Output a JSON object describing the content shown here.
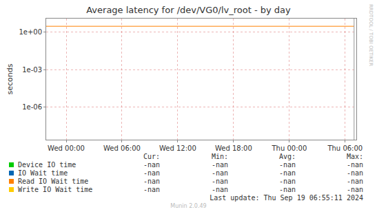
{
  "chart_data": {
    "type": "line",
    "title": "Average latency for /dev/VG0/lv_root - by day",
    "y_label": "seconds",
    "log": "y",
    "grid": true,
    "x": [
      -2.15,
      30.96
    ],
    "xlim": [
      -2.15,
      31.2
    ],
    "xticks": [
      {
        "value": 0,
        "label": "Wed 00:00"
      },
      {
        "value": 6,
        "label": "Wed 06:00"
      },
      {
        "value": 12,
        "label": "Wed 12:00"
      },
      {
        "value": 18,
        "label": "Wed 18:00"
      },
      {
        "value": 24,
        "label": "Thu 00:00"
      },
      {
        "value": 30,
        "label": "Thu 06:00"
      }
    ],
    "ylim": [
      2.7e-09,
      11
    ],
    "yticks": [
      {
        "value": 1e-06,
        "label": "1e-06"
      },
      {
        "value": 0.001,
        "label": "1e-03"
      },
      {
        "value": 1,
        "label": "1e+00"
      }
    ],
    "series": [
      {
        "name": "Device IO time",
        "color": "#00cc00",
        "values": [
          null,
          null
        ]
      },
      {
        "name": "IO Wait time",
        "color": "#0066b3",
        "values": [
          null,
          null
        ]
      },
      {
        "name": "Read IO Wait time",
        "color": "#ff8000",
        "values": [
          2.7,
          2.7
        ]
      },
      {
        "name": "Write IO Wait time",
        "color": "#ffcc00",
        "values": [
          null,
          null
        ]
      }
    ],
    "summary": {
      "columns": [
        "Cur:",
        "Min:",
        "Avg:",
        "Max:"
      ],
      "rows": [
        [
          "-nan",
          "-nan",
          "-nan",
          "-nan"
        ],
        [
          "-nan",
          "-nan",
          "-nan",
          "-nan"
        ],
        [
          "-nan",
          "-nan",
          "-nan",
          "-nan"
        ],
        [
          "-nan",
          "-nan",
          "-nan",
          "-nan"
        ]
      ]
    },
    "last_update": "Last update: Thu Sep 19 06:55:11 2024",
    "footer": "Munin 2.0.49",
    "side_text": "RRDTOOL / TOBI OETIKER"
  }
}
